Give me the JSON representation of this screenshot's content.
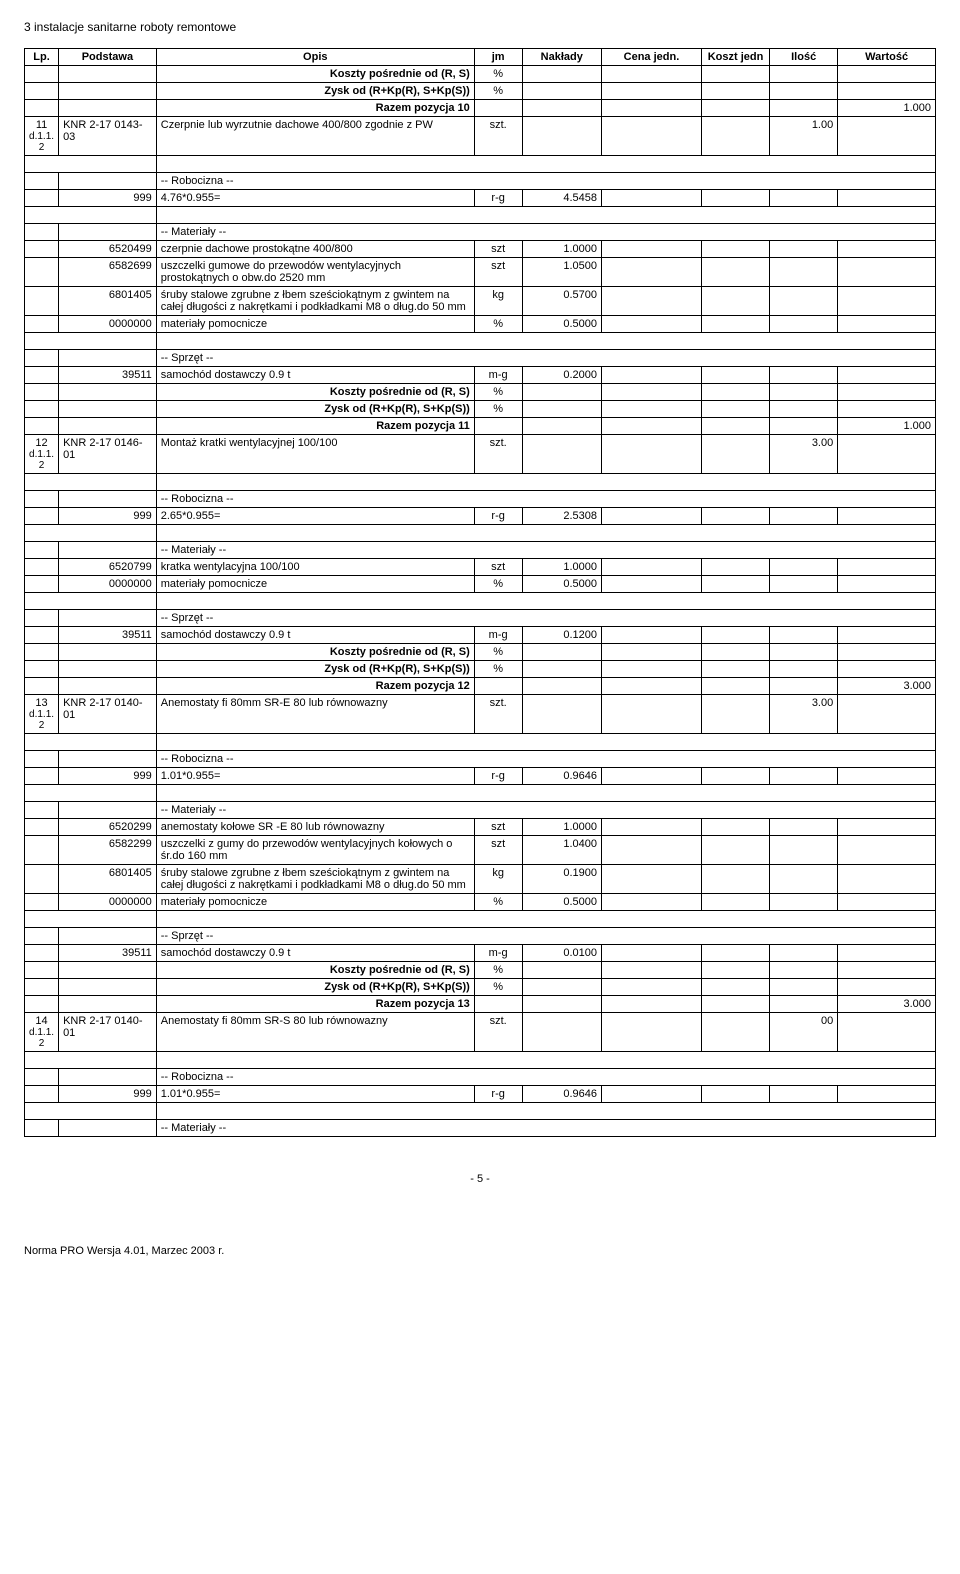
{
  "doc_header": "3 instalacje sanitarne roboty remontowe",
  "columns": [
    "Lp.",
    "Podstawa",
    "Opis",
    "jm",
    "Nakłady",
    "Cena jedn.",
    "Koszt jedn",
    "Ilość",
    "Wartość"
  ],
  "labels": {
    "koszty": "Koszty pośrednie od (R, S)",
    "zysk": "Zysk od (R+Kp(R), S+Kp(S))",
    "robocizna": "-- Robocizna --",
    "materialy": "-- Materiały --",
    "sprzet": "-- Sprzęt --"
  },
  "pct": "%",
  "rows": [
    {
      "t": "sum",
      "opis_key": "koszty",
      "jm": "%"
    },
    {
      "t": "sum",
      "opis_key": "zysk",
      "jm": "%"
    },
    {
      "t": "razem",
      "opis": "Razem pozycja 10",
      "wart": "1.000"
    },
    {
      "t": "item",
      "lp": "11",
      "pod": "KNR 2-17 0143-03",
      "sub": "d.1.1.2",
      "opis": "Czerpnie lub wyrzutnie dachowe 400/800 zgodnie z PW",
      "jm": "szt.",
      "ilosc": "1.00"
    },
    {
      "t": "spacer"
    },
    {
      "t": "hdr",
      "opis_key": "robocizna"
    },
    {
      "t": "line",
      "pod": "999",
      "opis": "4.76*0.955=",
      "jm": "r-g",
      "nakl": "4.5458"
    },
    {
      "t": "spacer"
    },
    {
      "t": "hdr",
      "opis_key": "materialy"
    },
    {
      "t": "line",
      "pod": "6520499",
      "opis": "czerpnie dachowe prostokątne 400/800",
      "jm": "szt",
      "nakl": "1.0000"
    },
    {
      "t": "line",
      "pod": "6582699",
      "opis": "uszczelki gumowe do przewodów wentylacyjnych prostokątnych o obw.do 2520 mm",
      "jm": "szt",
      "nakl": "1.0500"
    },
    {
      "t": "line",
      "pod": "6801405",
      "opis": "śruby stalowe zgrubne z łbem sześciokątnym z gwintem na całej długości z nakrętkami i podkładkami M8 o dług.do 50 mm",
      "jm": "kg",
      "nakl": "0.5700"
    },
    {
      "t": "line",
      "pod": "0000000",
      "opis": "materiały pomocnicze",
      "jm": "%",
      "nakl": "0.5000"
    },
    {
      "t": "spacer"
    },
    {
      "t": "hdr",
      "opis_key": "sprzet"
    },
    {
      "t": "line",
      "pod": "39511",
      "opis": "samochód dostawczy 0.9 t",
      "jm": "m-g",
      "nakl": "0.2000"
    },
    {
      "t": "sum",
      "opis_key": "koszty",
      "jm": "%"
    },
    {
      "t": "sum",
      "opis_key": "zysk",
      "jm": "%"
    },
    {
      "t": "razem",
      "opis": "Razem pozycja 11",
      "wart": "1.000"
    },
    {
      "t": "item",
      "lp": "12",
      "pod": "KNR 2-17 0146-01",
      "sub": "d.1.1.2",
      "opis": "Montaż kratki wentylacyjnej 100/100",
      "jm": "szt.",
      "ilosc": "3.00"
    },
    {
      "t": "spacer"
    },
    {
      "t": "hdr",
      "opis_key": "robocizna"
    },
    {
      "t": "line",
      "pod": "999",
      "opis": "2.65*0.955=",
      "jm": "r-g",
      "nakl": "2.5308"
    },
    {
      "t": "spacer"
    },
    {
      "t": "hdr",
      "opis_key": "materialy"
    },
    {
      "t": "line",
      "pod": "6520799",
      "opis": "kratka wentylacyjna 100/100",
      "jm": "szt",
      "nakl": "1.0000"
    },
    {
      "t": "line",
      "pod": "0000000",
      "opis": "materiały pomocnicze",
      "jm": "%",
      "nakl": "0.5000"
    },
    {
      "t": "spacer"
    },
    {
      "t": "hdr",
      "opis_key": "sprzet"
    },
    {
      "t": "line",
      "pod": "39511",
      "opis": "samochód dostawczy 0.9 t",
      "jm": "m-g",
      "nakl": "0.1200"
    },
    {
      "t": "sum",
      "opis_key": "koszty",
      "jm": "%"
    },
    {
      "t": "sum",
      "opis_key": "zysk",
      "jm": "%"
    },
    {
      "t": "razem",
      "opis": "Razem pozycja 12",
      "wart": "3.000"
    },
    {
      "t": "item",
      "lp": "13",
      "pod": "KNR 2-17 0140-01",
      "sub": "d.1.1.2",
      "opis": "Anemostaty fi 80mm SR-E 80 lub równowazny",
      "jm": "szt.",
      "ilosc": "3.00"
    },
    {
      "t": "spacer"
    },
    {
      "t": "hdr",
      "opis_key": "robocizna"
    },
    {
      "t": "line",
      "pod": "999",
      "opis": "1.01*0.955=",
      "jm": "r-g",
      "nakl": "0.9646"
    },
    {
      "t": "spacer"
    },
    {
      "t": "hdr",
      "opis_key": "materialy"
    },
    {
      "t": "line",
      "pod": "6520299",
      "opis": "anemostaty kołowe SR -E 80 lub równowazny",
      "jm": "szt",
      "nakl": "1.0000"
    },
    {
      "t": "line",
      "pod": "6582299",
      "opis": "uszczelki z gumy do przewodów wentylacyjnych kołowych o śr.do 160 mm",
      "jm": "szt",
      "nakl": "1.0400"
    },
    {
      "t": "line",
      "pod": "6801405",
      "opis": "śruby stalowe zgrubne z łbem sześciokątnym z gwintem na całej długości z nakrętkami i podkładkami M8 o dług.do 50 mm",
      "jm": "kg",
      "nakl": "0.1900"
    },
    {
      "t": "line",
      "pod": "0000000",
      "opis": "materiały pomocnicze",
      "jm": "%",
      "nakl": "0.5000"
    },
    {
      "t": "spacer"
    },
    {
      "t": "hdr",
      "opis_key": "sprzet"
    },
    {
      "t": "line",
      "pod": "39511",
      "opis": "samochód dostawczy 0.9 t",
      "jm": "m-g",
      "nakl": "0.0100"
    },
    {
      "t": "sum",
      "opis_key": "koszty",
      "jm": "%"
    },
    {
      "t": "sum",
      "opis_key": "zysk",
      "jm": "%"
    },
    {
      "t": "razem",
      "opis": "Razem pozycja 13",
      "wart": "3.000"
    },
    {
      "t": "item",
      "lp": "14",
      "pod": "KNR 2-17 0140-01",
      "sub": "d.1.1.2",
      "opis": "Anemostaty fi 80mm SR-S 80 lub równowazny",
      "jm": "szt.",
      "ilosc": "00"
    },
    {
      "t": "spacer"
    },
    {
      "t": "hdr",
      "opis_key": "robocizna"
    },
    {
      "t": "line",
      "pod": "999",
      "opis": "1.01*0.955=",
      "jm": "r-g",
      "nakl": "0.9646"
    },
    {
      "t": "spacer"
    },
    {
      "t": "hdr",
      "opis_key": "materialy"
    }
  ],
  "page_num": "- 5 -",
  "footer_note": "Norma PRO Wersja 4.01, Marzec 2003 r."
}
